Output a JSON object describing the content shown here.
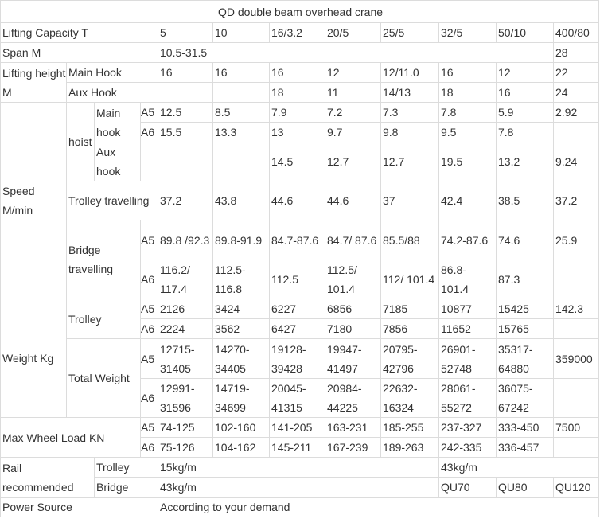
{
  "title": "QD double beam overhead crane",
  "capacity": {
    "label": "Lifting Capacity   T",
    "values": [
      "5",
      "10",
      "16/3.2",
      "20/5",
      "25/5",
      "32/5",
      "50/10",
      "400/80"
    ]
  },
  "span": {
    "label": "Span  M",
    "range": "10.5-31.5",
    "value_400": "28"
  },
  "lifting_height": {
    "label": "Lifting height M",
    "main_hook": {
      "label": "Main Hook",
      "values": [
        "16",
        "16",
        "16",
        "12",
        "12/11.0",
        "16",
        "12",
        "22"
      ]
    },
    "aux_hook": {
      "label": "Aux Hook",
      "values": [
        "",
        "",
        "18",
        "11",
        "14/13",
        "18",
        "16",
        "24"
      ]
    }
  },
  "speed": {
    "label": "Speed M/min",
    "hoist": {
      "label": "hoist",
      "main_hook_label": "Main hook",
      "a5": [
        "12.5",
        "8.5",
        "7.9",
        "7.2",
        "7.3",
        "7.8",
        "5.9",
        "2.92"
      ],
      "a6": [
        "15.5",
        "13.3",
        "13",
        "9.7",
        "9.8",
        "9.5",
        "7.8",
        ""
      ],
      "aux_hook": {
        "label": "Aux hook",
        "values": [
          "",
          "",
          "14.5",
          "12.7",
          "12.7",
          "19.5",
          "13.2",
          "9.24"
        ]
      }
    },
    "trolley": {
      "label": "Trolley travelling",
      "values": [
        "37.2",
        "43.8",
        "44.6",
        "44.6",
        "37",
        "42.4",
        "38.5",
        "37.2"
      ]
    },
    "bridge": {
      "label": "Bridge travelling",
      "a5": [
        "89.8 /92.3",
        "89.8-91.9",
        "84.7-87.6",
        "84.7/ 87.6",
        "85.5/88",
        "74.2-87.6",
        "74.6",
        "25.9"
      ],
      "a6": [
        "116.2/ 117.4",
        "112.5- 116.8",
        "112.5",
        "112.5/ 101.4",
        "112/ 101.4",
        "86.8- 101.4",
        "87.3",
        ""
      ]
    }
  },
  "grades": {
    "a5": "A5",
    "a6": "A6"
  },
  "weight": {
    "label": "Weight  Kg",
    "trolley": {
      "label": "Trolley",
      "a5": [
        "2126",
        "3424",
        "6227",
        "6856",
        "7185",
        "10877",
        "15425",
        "142.3"
      ],
      "a6": [
        "2224",
        "3562",
        "6427",
        "7180",
        "7856",
        "11652",
        "15765",
        ""
      ]
    },
    "total": {
      "label": "Total Weight",
      "a5": [
        "12715- 31405",
        "14270- 34405",
        "19128- 39428",
        "19947- 41497",
        "20795- 42796",
        "26901- 52748",
        "35317- 64880",
        "359000"
      ],
      "a6": [
        "12991- 31596",
        "14719- 34699",
        "20045- 41315",
        "20984- 44225",
        "22632- 16324",
        "28061- 55272",
        "36075- 67242",
        ""
      ]
    }
  },
  "wheel_load": {
    "label": "Max Wheel Load KN",
    "a5": [
      "74-125",
      "102-160",
      "141-205",
      "163-231",
      "185-255",
      "237-327",
      "333-450",
      "7500"
    ],
    "a6": [
      "75-126",
      "104-162",
      "145-211",
      "167-239",
      "189-263",
      "242-335",
      "336-457",
      ""
    ]
  },
  "rail": {
    "label": "Rail recommended",
    "trolley": {
      "label": "Trolley",
      "small": "15kg/m",
      "large": "43kg/m"
    },
    "bridge": {
      "label": "Bridge",
      "small": "43kg/m",
      "values": [
        "QU70",
        "QU80",
        "QU120"
      ]
    }
  },
  "power": {
    "label": "Power Source",
    "value": "According to your demand"
  }
}
